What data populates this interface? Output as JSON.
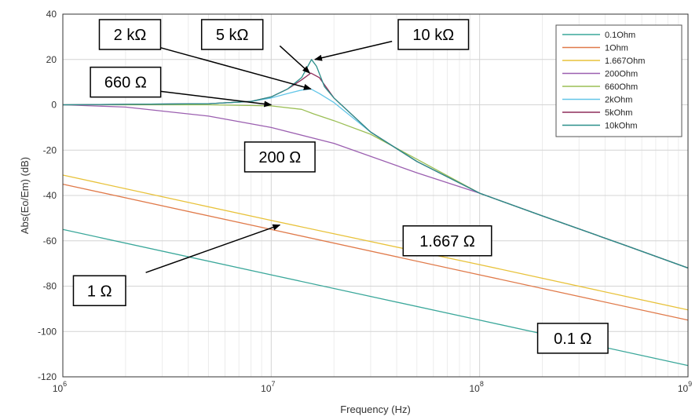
{
  "chart_data": {
    "type": "line",
    "title": "",
    "xlabel": "Frequency (Hz)",
    "ylabel": "Abs(Eo/Em) (dB)",
    "xscale": "log",
    "xlim": [
      1000000,
      1000000000
    ],
    "ylim": [
      -120,
      40
    ],
    "yticks": [
      "40",
      "20",
      "0",
      "-20",
      "-40",
      "-60",
      "-80",
      "-100",
      "-120"
    ],
    "xticks": [
      {
        "base": "10",
        "exp": "6"
      },
      {
        "base": "10",
        "exp": "7"
      },
      {
        "base": "10",
        "exp": "8"
      },
      {
        "base": "10",
        "exp": "9"
      }
    ],
    "grid": true,
    "legend_position": "top-right",
    "series": [
      {
        "name": "0.1Ohm",
        "color": "#3aa79a",
        "x": [
          1000000,
          10000000,
          100000000,
          1000000000
        ],
        "y": [
          -55,
          -75,
          -95,
          -115
        ]
      },
      {
        "name": "1Ohm",
        "color": "#e07a4a",
        "x": [
          1000000,
          10000000,
          100000000,
          1000000000
        ],
        "y": [
          -35,
          -55,
          -75,
          -95
        ]
      },
      {
        "name": "1.667Ohm",
        "color": "#e8c23a",
        "x": [
          1000000,
          10000000,
          100000000,
          1000000000
        ],
        "y": [
          -31,
          -51,
          -70.5,
          -90.5
        ]
      },
      {
        "name": "200Ohm",
        "color": "#9b5fb0",
        "x": [
          1000000,
          2000000,
          5000000,
          10000000,
          20000000,
          50000000,
          100000000,
          200000000,
          500000000,
          1000000000
        ],
        "y": [
          0,
          -1,
          -5,
          -10,
          -17,
          -30,
          -39,
          -49,
          -62,
          -72
        ]
      },
      {
        "name": "660Ohm",
        "color": "#9bbf55",
        "x": [
          1000000,
          5000000,
          10000000,
          14000000,
          16000000,
          20000000,
          30000000,
          50000000,
          100000000,
          200000000,
          500000000,
          1000000000
        ],
        "y": [
          0,
          0,
          -0.5,
          -2,
          -4,
          -7,
          -13,
          -24,
          -39,
          -49,
          -62,
          -72
        ]
      },
      {
        "name": "2kOhm",
        "color": "#62c6e8",
        "x": [
          1000000,
          5000000,
          8000000,
          10000000,
          12000000,
          14000000,
          15500000,
          17000000,
          20000000,
          30000000,
          50000000,
          100000000,
          200000000,
          500000000,
          1000000000
        ],
        "y": [
          0,
          0.5,
          1.5,
          3,
          5,
          6.5,
          7,
          5,
          1,
          -12,
          -25,
          -39,
          -49,
          -62,
          -72
        ]
      },
      {
        "name": "5kOhm",
        "color": "#8e2d5a",
        "x": [
          1000000,
          5000000,
          8000000,
          10000000,
          12000000,
          14000000,
          15500000,
          17000000,
          20000000,
          30000000,
          50000000,
          100000000,
          200000000,
          500000000,
          1000000000
        ],
        "y": [
          0,
          0.5,
          1.5,
          3.5,
          7,
          11,
          14,
          12,
          3,
          -12,
          -25,
          -39,
          -49,
          -62,
          -72
        ]
      },
      {
        "name": "10kOhm",
        "color": "#2b8f8a",
        "x": [
          1000000,
          5000000,
          8000000,
          10000000,
          12000000,
          14000000,
          15600000,
          16500000,
          18000000,
          20000000,
          30000000,
          50000000,
          100000000,
          200000000,
          500000000,
          1000000000
        ],
        "y": [
          0,
          0.5,
          1.5,
          3.5,
          7,
          12,
          20,
          17,
          8,
          3,
          -12,
          -25,
          -39,
          -49,
          -62,
          -72
        ]
      }
    ],
    "annotations": [
      {
        "text": "2 kΩ",
        "box_freq": 2100000,
        "box_db": 31,
        "arrow_from_freq": 2500000,
        "arrow_from_db": 27,
        "arrow_to_freq": 15500000,
        "arrow_to_db": 7
      },
      {
        "text": "5 kΩ",
        "box_freq": 6500000,
        "box_db": 31,
        "arrow_from_freq": 11000000,
        "arrow_from_db": 26,
        "arrow_to_freq": 15300000,
        "arrow_to_db": 14
      },
      {
        "text": "10 kΩ",
        "box_freq": 60000000,
        "box_db": 31,
        "arrow_from_freq": 38000000,
        "arrow_from_db": 28,
        "arrow_to_freq": 16200000,
        "arrow_to_db": 20
      },
      {
        "text": "660 Ω",
        "box_freq": 2000000,
        "box_db": 10,
        "arrow_from_freq": 2900000,
        "arrow_from_db": 6,
        "arrow_to_freq": 10000000,
        "arrow_to_db": 0
      },
      {
        "text": "200 Ω",
        "box_freq": 11000000,
        "box_db": -23,
        "arrow_from_freq": null,
        "arrow_from_db": null,
        "arrow_to_freq": null,
        "arrow_to_db": null
      },
      {
        "text": "1.667 Ω",
        "box_freq": 70000000,
        "box_db": -60,
        "arrow_from_freq": null,
        "arrow_from_db": null,
        "arrow_to_freq": null,
        "arrow_to_db": null
      },
      {
        "text": "1 Ω",
        "box_freq": 1500000,
        "box_db": -82,
        "arrow_from_freq": 2500000,
        "arrow_from_db": -74,
        "arrow_to_freq": 11000000,
        "arrow_to_db": -53
      },
      {
        "text": "0.1 Ω",
        "box_freq": 280000000,
        "box_db": -103,
        "arrow_from_freq": null,
        "arrow_from_db": null,
        "arrow_to_freq": null,
        "arrow_to_db": null
      }
    ]
  }
}
